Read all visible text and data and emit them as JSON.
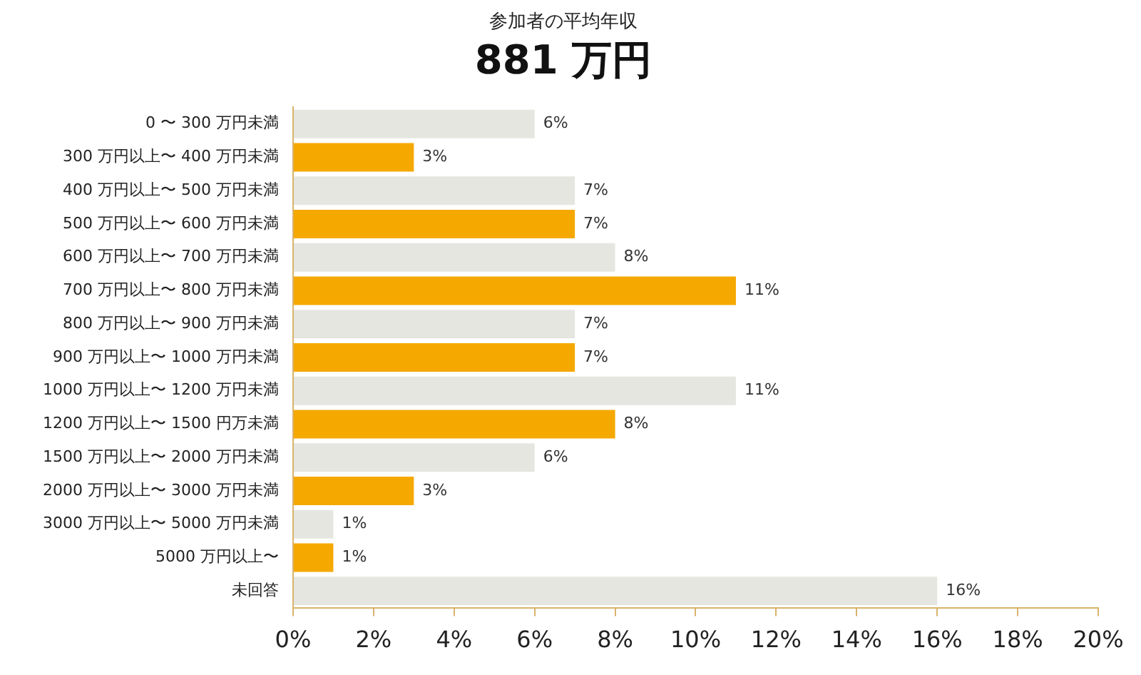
{
  "chart_data": {
    "type": "bar",
    "orientation": "horizontal",
    "title": "参加者の平均年収",
    "subtitle": "881 万円",
    "categories": [
      "0 〜 300 万円未満",
      "300 万円以上〜 400 万円未満",
      "400 万円以上〜 500 万円未満",
      "500 万円以上〜 600 万円未満",
      "600 万円以上〜 700 万円未満",
      "700 万円以上〜 800 万円未満",
      "800 万円以上〜 900 万円未満",
      "900 万円以上〜 1000 万円未満",
      "1000 万円以上〜 1200 万円未満",
      "1200 万円以上〜 1500 円万未満",
      "1500 万円以上〜 2000 万円未満",
      "2000 万円以上〜 3000 万円未満",
      "3000 万円以上〜 5000 万円未満",
      "5000 万円以上〜",
      "未回答"
    ],
    "values": [
      6,
      3,
      7,
      7,
      8,
      11,
      7,
      7,
      11,
      8,
      6,
      3,
      1,
      1,
      16
    ],
    "value_labels": [
      "6%",
      "3%",
      "7%",
      "7%",
      "8%",
      "11%",
      "7%",
      "7%",
      "11%",
      "8%",
      "6%",
      "3%",
      "1%",
      "1%",
      "16%"
    ],
    "colors": [
      "#e6e6e1",
      "#f5a800",
      "#e6e6e1",
      "#f5a800",
      "#e6e6e1",
      "#f5a800",
      "#e6e6e1",
      "#f5a800",
      "#e6e6e1",
      "#f5a800",
      "#e6e6e1",
      "#f5a800",
      "#e6e6e1",
      "#f5a800",
      "#e6e6e1"
    ],
    "xlim": [
      0,
      20
    ],
    "xticks": [
      {
        "value": 0,
        "label": "0%"
      },
      {
        "value": 2,
        "label": "2%"
      },
      {
        "value": 4,
        "label": "4%"
      },
      {
        "value": 6,
        "label": "6%"
      },
      {
        "value": 8,
        "label": "8%"
      },
      {
        "value": 10,
        "label": "10%"
      },
      {
        "value": 12,
        "label": "12%"
      },
      {
        "value": 14,
        "label": "14%"
      },
      {
        "value": 16,
        "label": "16%"
      },
      {
        "value": 18,
        "label": "18%"
      },
      {
        "value": 20,
        "label": "20%"
      }
    ],
    "grid": false,
    "legend": false
  }
}
